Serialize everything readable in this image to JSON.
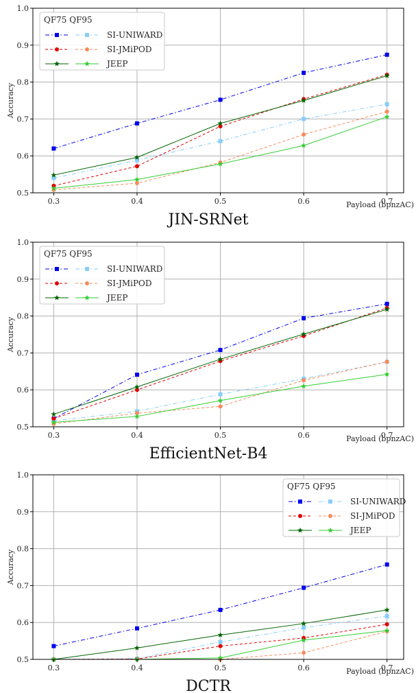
{
  "chart_data": [
    {
      "type": "line",
      "title": "JIN-SRNet",
      "xlabel": "Payload (bpnzAC)",
      "ylabel": "Accuracy",
      "x": [
        0.3,
        0.4,
        0.5,
        0.6,
        0.7
      ],
      "xticks": [
        "0.3",
        "0.4",
        "0.5",
        "0.6",
        "0.7"
      ],
      "ylim": [
        0.5,
        1.0
      ],
      "yticks": [
        "0.5",
        "0.6",
        "0.7",
        "0.8",
        "0.9",
        "1.0"
      ],
      "grid": true,
      "legend_placement": "top-left",
      "legend_header": "QF75 QF95",
      "legend": [
        {
          "label": "SI-UNIWARD",
          "colors": [
            "#0000ee",
            "#87cefa"
          ],
          "marker": "square",
          "dash": "dashdot"
        },
        {
          "label": "SI-JMiPOD",
          "colors": [
            "#e00000",
            "#fa8a5a"
          ],
          "marker": "circle",
          "dash": "dashed"
        },
        {
          "label": "JEEP",
          "colors": [
            "#006400",
            "#32cd32"
          ],
          "marker": "star",
          "dash": "solid"
        }
      ],
      "series": [
        {
          "stego": "SI-UNIWARD",
          "qf": "QF75",
          "color": "#0000ee",
          "marker": "square",
          "dash": "dashdot",
          "values": [
            0.62,
            0.688,
            0.752,
            0.825,
            0.874
          ]
        },
        {
          "stego": "SI-UNIWARD",
          "qf": "QF95",
          "color": "#87cefa",
          "marker": "square",
          "dash": "dashdot",
          "values": [
            0.54,
            0.588,
            0.64,
            0.7,
            0.74
          ]
        },
        {
          "stego": "SI-JMiPOD",
          "qf": "QF75",
          "color": "#e00000",
          "marker": "circle",
          "dash": "dashed",
          "values": [
            0.519,
            0.572,
            0.68,
            0.754,
            0.82
          ]
        },
        {
          "stego": "SI-JMiPOD",
          "qf": "QF95",
          "color": "#fa8a5a",
          "marker": "circle",
          "dash": "dashed",
          "values": [
            0.508,
            0.526,
            0.582,
            0.658,
            0.72
          ]
        },
        {
          "stego": "JEEP",
          "qf": "QF75",
          "color": "#006400",
          "marker": "star",
          "dash": "solid",
          "values": [
            0.548,
            0.596,
            0.688,
            0.75,
            0.817
          ]
        },
        {
          "stego": "JEEP",
          "qf": "QF95",
          "color": "#32cd32",
          "marker": "star",
          "dash": "solid",
          "values": [
            0.512,
            0.536,
            0.578,
            0.628,
            0.706
          ]
        }
      ]
    },
    {
      "type": "line",
      "title": "EfficientNet-B4",
      "xlabel": "Payload (bpnzAC)",
      "ylabel": "Accuracy",
      "x": [
        0.3,
        0.4,
        0.5,
        0.6,
        0.7
      ],
      "xticks": [
        "0.3",
        "0.4",
        "0.5",
        "0.6",
        "0.7"
      ],
      "ylim": [
        0.5,
        1.0
      ],
      "yticks": [
        "0.5",
        "0.6",
        "0.7",
        "0.8",
        "0.9",
        "1.0"
      ],
      "grid": true,
      "legend_placement": "top-left",
      "legend_header": "QF75 QF95",
      "legend": [
        {
          "label": "SI-UNIWARD",
          "colors": [
            "#0000ee",
            "#87cefa"
          ],
          "marker": "square",
          "dash": "dashdot"
        },
        {
          "label": "SI-JMiPOD",
          "colors": [
            "#e00000",
            "#fa8a5a"
          ],
          "marker": "circle",
          "dash": "dashed"
        },
        {
          "label": "JEEP",
          "colors": [
            "#006400",
            "#32cd32"
          ],
          "marker": "star",
          "dash": "solid"
        }
      ],
      "series": [
        {
          "stego": "SI-UNIWARD",
          "qf": "QF75",
          "color": "#0000ee",
          "marker": "square",
          "dash": "dashdot",
          "values": [
            0.522,
            0.641,
            0.708,
            0.794,
            0.833
          ]
        },
        {
          "stego": "SI-UNIWARD",
          "qf": "QF95",
          "color": "#87cefa",
          "marker": "square",
          "dash": "dashdot",
          "values": [
            0.516,
            0.542,
            0.588,
            0.63,
            0.676
          ]
        },
        {
          "stego": "SI-JMiPOD",
          "qf": "QF75",
          "color": "#e00000",
          "marker": "circle",
          "dash": "dashed",
          "values": [
            0.522,
            0.6,
            0.678,
            0.746,
            0.822
          ]
        },
        {
          "stego": "SI-JMiPOD",
          "qf": "QF95",
          "color": "#fa8a5a",
          "marker": "circle",
          "dash": "dashed",
          "values": [
            0.508,
            0.537,
            0.555,
            0.626,
            0.676
          ]
        },
        {
          "stego": "JEEP",
          "qf": "QF75",
          "color": "#006400",
          "marker": "star",
          "dash": "solid",
          "values": [
            0.534,
            0.608,
            0.683,
            0.751,
            0.818
          ]
        },
        {
          "stego": "JEEP",
          "qf": "QF95",
          "color": "#32cd32",
          "marker": "star",
          "dash": "solid",
          "values": [
            0.512,
            0.528,
            0.571,
            0.61,
            0.642
          ]
        }
      ]
    },
    {
      "type": "line",
      "title": "DCTR",
      "xlabel": "Payload (bpnzAC)",
      "ylabel": "Accuracy",
      "x": [
        0.3,
        0.4,
        0.5,
        0.6,
        0.7
      ],
      "xticks": [
        "0.3",
        "0.4",
        "0.5",
        "0.6",
        "0.7"
      ],
      "ylim": [
        0.5,
        1.0
      ],
      "yticks": [
        "0.5",
        "0.6",
        "0.7",
        "0.8",
        "0.9",
        "1.0"
      ],
      "grid": true,
      "legend_placement": "top-right",
      "legend_header": "QF75 QF95",
      "legend": [
        {
          "label": "SI-UNIWARD",
          "colors": [
            "#0000ee",
            "#87cefa"
          ],
          "marker": "square",
          "dash": "dashdot"
        },
        {
          "label": "SI-JMiPOD",
          "colors": [
            "#e00000",
            "#fa8a5a"
          ],
          "marker": "circle",
          "dash": "dashed"
        },
        {
          "label": "JEEP",
          "colors": [
            "#006400",
            "#32cd32"
          ],
          "marker": "star",
          "dash": "solid"
        }
      ],
      "series": [
        {
          "stego": "SI-UNIWARD",
          "qf": "QF75",
          "color": "#0000ee",
          "marker": "square",
          "dash": "dashdot",
          "values": [
            0.536,
            0.584,
            0.634,
            0.694,
            0.757
          ]
        },
        {
          "stego": "SI-UNIWARD",
          "qf": "QF95",
          "color": "#87cefa",
          "marker": "square",
          "dash": "dashdot",
          "values": [
            0.5,
            0.502,
            0.547,
            0.586,
            0.617
          ]
        },
        {
          "stego": "SI-JMiPOD",
          "qf": "QF75",
          "color": "#e00000",
          "marker": "circle",
          "dash": "dashed",
          "values": [
            0.5,
            0.501,
            0.536,
            0.558,
            0.595
          ]
        },
        {
          "stego": "SI-JMiPOD",
          "qf": "QF95",
          "color": "#fa8a5a",
          "marker": "circle",
          "dash": "dashed",
          "values": [
            0.5,
            0.5,
            0.5,
            0.518,
            0.576
          ]
        },
        {
          "stego": "JEEP",
          "qf": "QF75",
          "color": "#006400",
          "marker": "star",
          "dash": "solid",
          "values": [
            0.5,
            0.531,
            0.566,
            0.597,
            0.634
          ]
        },
        {
          "stego": "JEEP",
          "qf": "QF95",
          "color": "#32cd32",
          "marker": "star",
          "dash": "solid",
          "values": [
            0.5,
            0.5,
            0.504,
            0.552,
            0.578
          ]
        }
      ]
    }
  ]
}
